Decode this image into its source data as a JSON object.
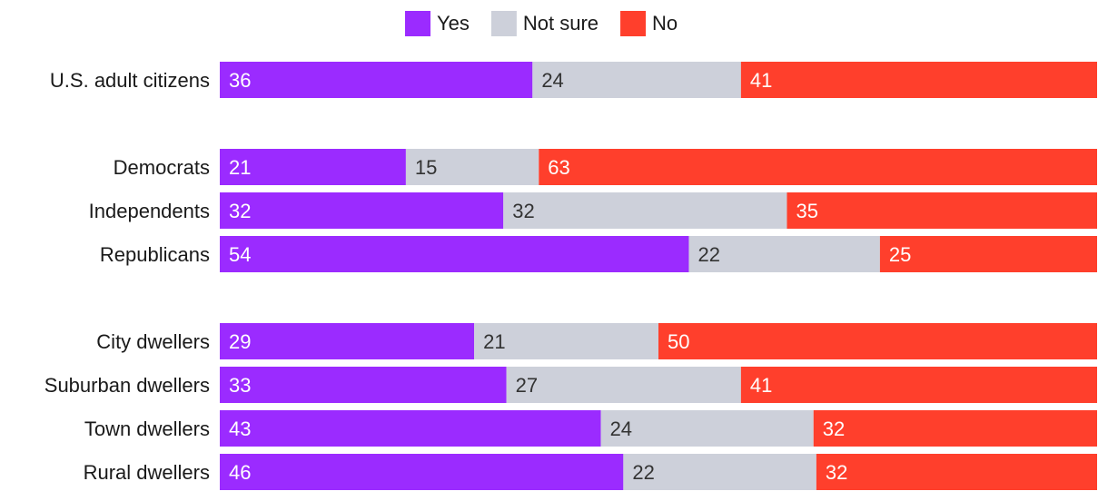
{
  "chart_data": {
    "type": "bar",
    "orientation": "horizontal",
    "stacked": true,
    "normalized": true,
    "title": "",
    "legend_position": "top-center",
    "categories": [
      "U.S. adult citizens",
      "Democrats",
      "Independents",
      "Republicans",
      "City dwellers",
      "Suburban dwellers",
      "Town dwellers",
      "Rural dwellers"
    ],
    "groups": [
      [
        "U.S. adult citizens"
      ],
      [
        "Democrats",
        "Independents",
        "Republicans"
      ],
      [
        "City dwellers",
        "Suburban dwellers",
        "Town dwellers",
        "Rural dwellers"
      ]
    ],
    "series": [
      {
        "name": "Yes",
        "color": "#9b2bff",
        "label_color": "#ffffff",
        "values": [
          36,
          21,
          32,
          54,
          29,
          33,
          43,
          46
        ]
      },
      {
        "name": "Not sure",
        "color": "#cdd0da",
        "label_color": "#333333",
        "values": [
          24,
          15,
          32,
          22,
          21,
          27,
          24,
          22
        ]
      },
      {
        "name": "No",
        "color": "#ff3f2c",
        "label_color": "#ffffff",
        "values": [
          41,
          63,
          35,
          25,
          50,
          41,
          32,
          32
        ]
      }
    ]
  }
}
